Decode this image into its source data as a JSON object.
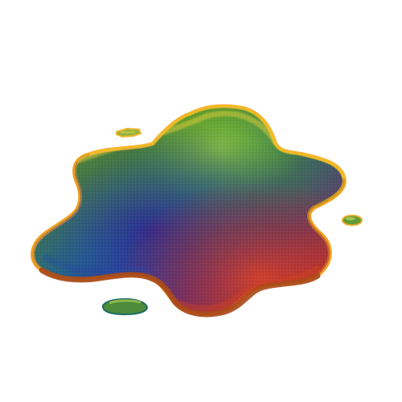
{
  "colors": {
    "background": "#ffffff",
    "green": "#4f8f1e",
    "lime": "#7fba2a",
    "teal": "#1f7f88",
    "blue": "#1e3f9d",
    "indigo": "#3a239a",
    "purple": "#5a2785",
    "red": "#c3362a",
    "orange": "#f08a1c",
    "yellow": "#f3d43c",
    "rim_dark": "#b5461a"
  }
}
